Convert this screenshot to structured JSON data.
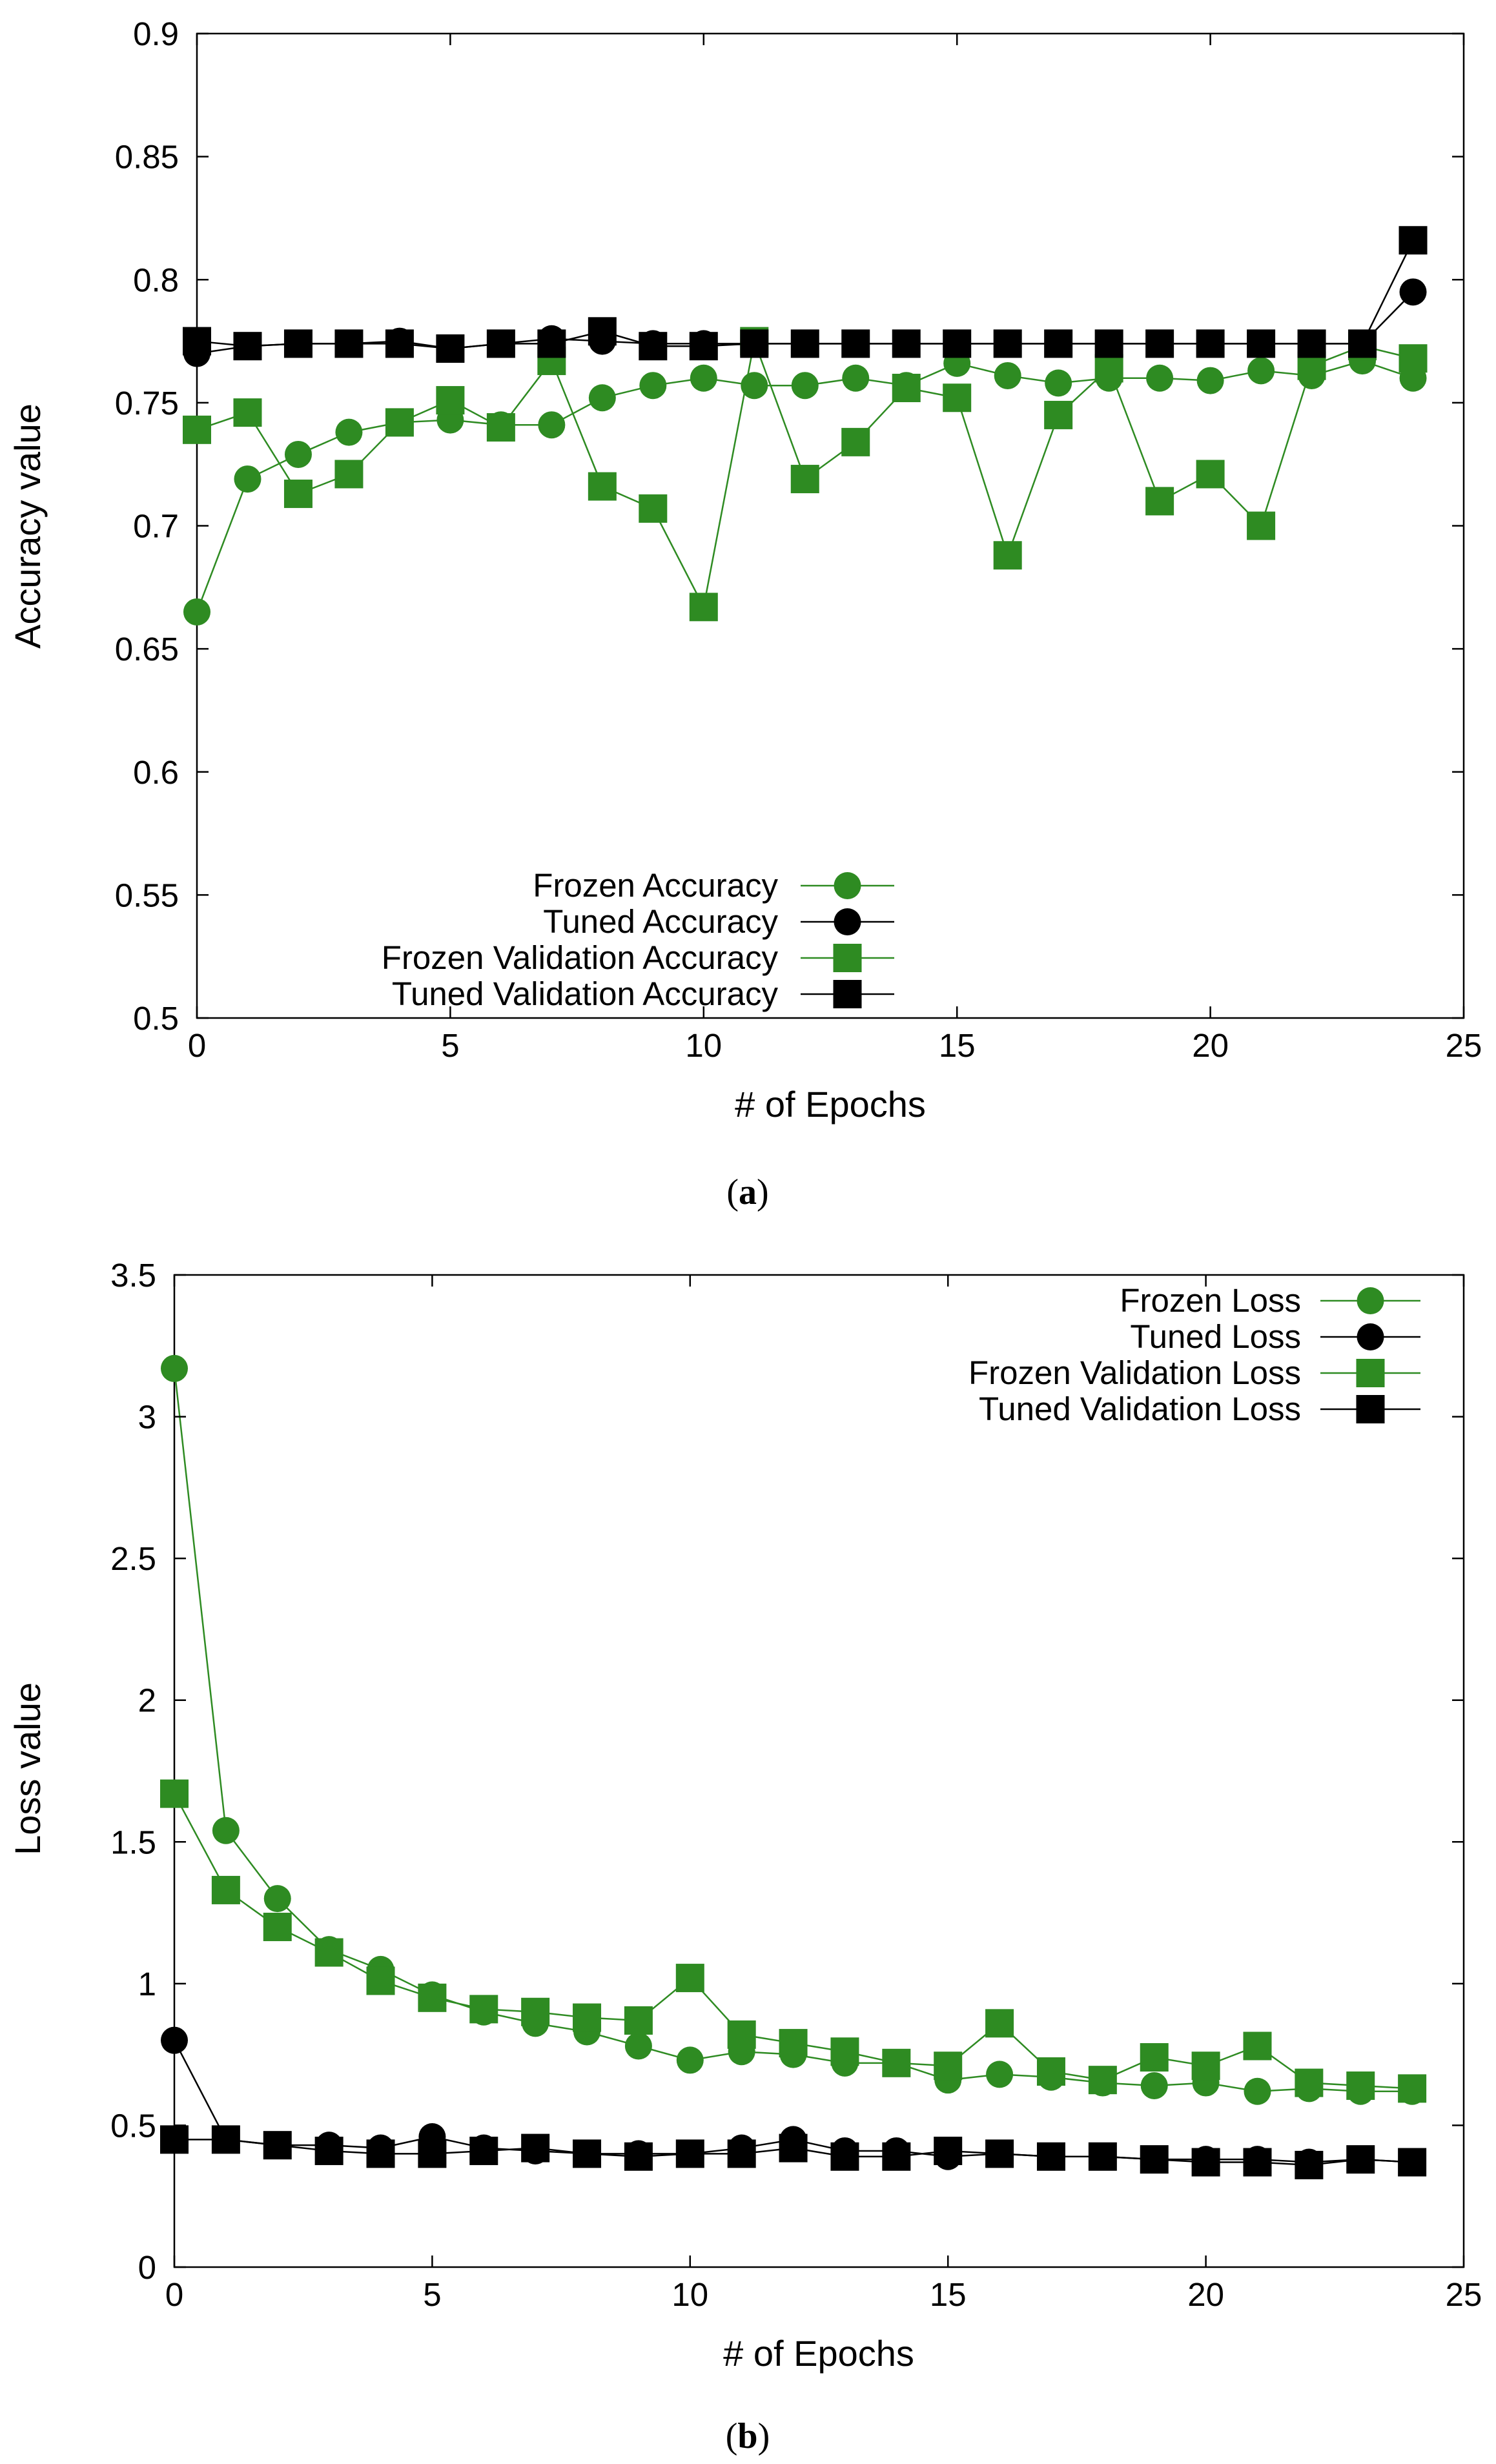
{
  "chart_data": [
    {
      "type": "line",
      "caption_open": "(",
      "caption_letter": "a",
      "caption_close": ")",
      "xlabel": "# of Epochs",
      "ylabel": "Accuracy value",
      "xlim": [
        0,
        25
      ],
      "ylim": [
        0.5,
        0.9
      ],
      "xticks": [
        "0",
        "5",
        "10",
        "15",
        "20",
        "25"
      ],
      "yticks": [
        "0.5",
        "0.55",
        "0.6",
        "0.65",
        "0.7",
        "0.75",
        "0.8",
        "0.85",
        "0.9"
      ],
      "legend_position": "bottom-center",
      "x": [
        0,
        1,
        2,
        3,
        4,
        5,
        6,
        7,
        8,
        9,
        10,
        11,
        12,
        13,
        14,
        15,
        16,
        17,
        18,
        19,
        20,
        21,
        22,
        23,
        24
      ],
      "series": [
        {
          "name": "Frozen Accuracy",
          "color": "#2e8b22",
          "marker": "circle",
          "values": [
            0.665,
            0.719,
            0.729,
            0.738,
            0.742,
            0.743,
            0.741,
            0.741,
            0.752,
            0.757,
            0.76,
            0.757,
            0.757,
            0.76,
            0.757,
            0.766,
            0.761,
            0.758,
            0.76,
            0.76,
            0.759,
            0.763,
            0.761,
            0.767,
            0.76
          ]
        },
        {
          "name": "Tuned Accuracy",
          "color": "#000000",
          "marker": "circle",
          "values": [
            0.77,
            0.773,
            0.774,
            0.774,
            0.775,
            0.772,
            0.774,
            0.776,
            0.775,
            0.774,
            0.774,
            0.774,
            0.774,
            0.774,
            0.774,
            0.774,
            0.774,
            0.774,
            0.774,
            0.774,
            0.774,
            0.774,
            0.774,
            0.774,
            0.795
          ]
        },
        {
          "name": "Frozen Validation Accuracy",
          "color": "#2e8b22",
          "marker": "square",
          "values": [
            0.739,
            0.746,
            0.713,
            0.721,
            0.742,
            0.751,
            0.74,
            0.767,
            0.716,
            0.707,
            0.667,
            0.775,
            0.719,
            0.734,
            0.756,
            0.752,
            0.688,
            0.745,
            0.764,
            0.71,
            0.721,
            0.7,
            0.765,
            0.773,
            0.768
          ]
        },
        {
          "name": "Tuned Validation Accuracy",
          "color": "#000000",
          "marker": "square",
          "values": [
            0.775,
            0.773,
            0.774,
            0.774,
            0.774,
            0.772,
            0.774,
            0.774,
            0.779,
            0.773,
            0.773,
            0.774,
            0.774,
            0.774,
            0.774,
            0.774,
            0.774,
            0.774,
            0.774,
            0.774,
            0.774,
            0.774,
            0.774,
            0.774,
            0.816
          ]
        }
      ]
    },
    {
      "type": "line",
      "caption_open": "(",
      "caption_letter": "b",
      "caption_close": ")",
      "xlabel": "# of Epochs",
      "ylabel": "Loss value",
      "xlim": [
        0,
        25
      ],
      "ylim": [
        0,
        3.5
      ],
      "xticks": [
        "0",
        "5",
        "10",
        "15",
        "20",
        "25"
      ],
      "yticks": [
        "0",
        "0.5",
        "1",
        "1.5",
        "2",
        "2.5",
        "3",
        "3.5"
      ],
      "legend_position": "top-right",
      "x": [
        0,
        1,
        2,
        3,
        4,
        5,
        6,
        7,
        8,
        9,
        10,
        11,
        12,
        13,
        14,
        15,
        16,
        17,
        18,
        19,
        20,
        21,
        22,
        23,
        24
      ],
      "series": [
        {
          "name": "Frozen Loss",
          "color": "#2e8b22",
          "marker": "circle",
          "values": [
            3.17,
            1.54,
            1.3,
            1.12,
            1.05,
            0.96,
            0.9,
            0.86,
            0.83,
            0.78,
            0.73,
            0.76,
            0.75,
            0.72,
            0.72,
            0.66,
            0.68,
            0.67,
            0.65,
            0.64,
            0.65,
            0.62,
            0.63,
            0.62,
            0.62
          ]
        },
        {
          "name": "Tuned Loss",
          "color": "#000000",
          "marker": "circle",
          "values": [
            0.8,
            0.45,
            0.43,
            0.43,
            0.42,
            0.46,
            0.42,
            0.41,
            0.4,
            0.4,
            0.4,
            0.42,
            0.45,
            0.41,
            0.41,
            0.39,
            0.4,
            0.39,
            0.39,
            0.38,
            0.38,
            0.38,
            0.37,
            0.38,
            0.37
          ]
        },
        {
          "name": "Frozen Validation Loss",
          "color": "#2e8b22",
          "marker": "square",
          "values": [
            1.67,
            1.33,
            1.2,
            1.11,
            1.01,
            0.95,
            0.91,
            0.9,
            0.88,
            0.87,
            1.02,
            0.82,
            0.79,
            0.76,
            0.72,
            0.71,
            0.86,
            0.69,
            0.66,
            0.74,
            0.71,
            0.78,
            0.65,
            0.64,
            0.63
          ]
        },
        {
          "name": "Tuned Validation Loss",
          "color": "#000000",
          "marker": "square",
          "values": [
            0.45,
            0.45,
            0.43,
            0.41,
            0.4,
            0.4,
            0.41,
            0.42,
            0.4,
            0.39,
            0.4,
            0.4,
            0.42,
            0.39,
            0.39,
            0.41,
            0.4,
            0.39,
            0.39,
            0.38,
            0.37,
            0.37,
            0.36,
            0.38,
            0.37
          ]
        }
      ]
    }
  ]
}
